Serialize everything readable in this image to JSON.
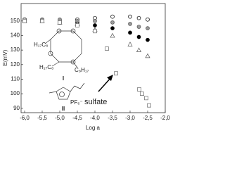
{
  "chart_data": {
    "type": "scatter",
    "xlabel": "Log a",
    "ylabel": "E(mV)",
    "xlim": [
      -6.1,
      -2.0
    ],
    "xticks": [
      {
        "value": -6.0,
        "label": "-6,0"
      },
      {
        "value": -5.5,
        "label": "-5,5"
      },
      {
        "value": -5.0,
        "label": "-5,0"
      },
      {
        "value": -4.5,
        "label": "-4,5"
      },
      {
        "value": -4.0,
        "label": "-4,0"
      },
      {
        "value": -3.5,
        "label": "-3,5"
      },
      {
        "value": -3.0,
        "label": "-3,0"
      },
      {
        "value": -2.5,
        "label": "-2,5"
      },
      {
        "value": -2.0,
        "label": "-2,0"
      }
    ],
    "ylim": [
      87,
      162
    ],
    "yticks": [
      90,
      100,
      110,
      120,
      130,
      140,
      150
    ],
    "series": [
      {
        "marker": "circle",
        "color": "#000000",
        "fill": "#000000",
        "x": [
          -6.0,
          -5.5,
          -5.0,
          -4.5,
          -4.0,
          -3.5,
          -3.0,
          -2.75,
          -2.5
        ],
        "values": [
          151,
          150,
          149,
          149,
          147,
          145,
          142,
          139,
          137
        ]
      },
      {
        "marker": "circle",
        "color": "#000000",
        "fill": "#ffffff",
        "x": [
          -6.0,
          -5.5,
          -5.0,
          -4.5,
          -4.0,
          -3.5,
          -3.0,
          -2.75,
          -2.5
        ],
        "values": [
          151,
          151,
          150,
          151,
          152,
          153,
          153,
          152,
          151
        ]
      },
      {
        "marker": "circle",
        "color": "#555555",
        "fill": "#999999",
        "x": [
          -6.0,
          -5.5,
          -5.0,
          -4.5,
          -4.0,
          -3.5,
          -3.0,
          -2.75,
          -2.5
        ],
        "values": [
          150,
          151,
          151,
          150,
          150,
          149,
          148,
          146,
          145
        ]
      },
      {
        "marker": "triangle",
        "color": "#555555",
        "fill": "#ffffff",
        "x": [
          -6.0,
          -5.5,
          -5.0,
          -4.5,
          -4.0,
          -3.5,
          -3.0,
          -2.75,
          -2.5
        ],
        "values": [
          150,
          150,
          149,
          148,
          144,
          140,
          134,
          130,
          126
        ]
      },
      {
        "marker": "square",
        "color": "#666666",
        "fill": "#ffffff",
        "x": [
          -6.0,
          -5.5,
          -5.0,
          -4.5,
          -4.0,
          -3.66,
          -3.4,
          -2.74,
          -2.66,
          -2.54,
          -2.46
        ],
        "values": [
          150,
          150,
          149,
          147,
          143,
          131,
          114,
          103,
          100,
          97,
          92
        ]
      }
    ],
    "annotations": {
      "arrow_label": "sulfate",
      "compound_1_label": "I",
      "compound_2_label": "II",
      "substituent_top": "H₁₇C₈",
      "substituent_bottom_left": "H₁₇C₈",
      "substituent_bottom_right": "C₈H₁₇",
      "anion": "PF₆⁻"
    }
  }
}
